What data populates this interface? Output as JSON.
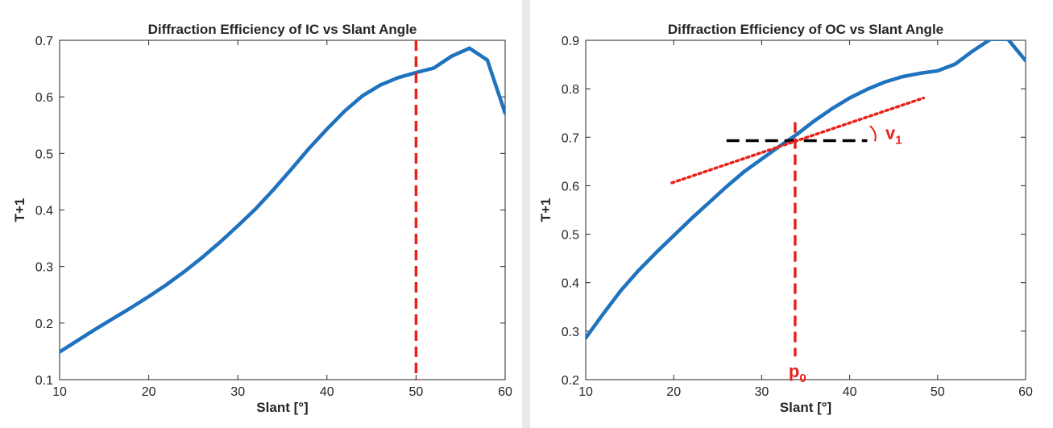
{
  "chart_data": [
    {
      "type": "line",
      "title": "Diffraction Efficiency of IC vs Slant Angle",
      "xlabel": "Slant [°]",
      "ylabel": "T+1",
      "xlim": [
        10,
        60
      ],
      "ylim": [
        0.1,
        0.7
      ],
      "xticks": [
        "10",
        "20",
        "30",
        "40",
        "50",
        "60"
      ],
      "yticks": [
        "0.1",
        "0.2",
        "0.3",
        "0.4",
        "0.5",
        "0.6",
        "0.7"
      ],
      "grid": false,
      "line_color": "#1f72bd",
      "series": [
        {
          "x": [
            10,
            12,
            14,
            16,
            18,
            20,
            22,
            24,
            26,
            28,
            30,
            32,
            34,
            36,
            38,
            40,
            42,
            44,
            46,
            48,
            50,
            52,
            54,
            56,
            58,
            60
          ],
          "values": [
            0.149,
            0.169,
            0.189,
            0.208,
            0.227,
            0.247,
            0.268,
            0.291,
            0.316,
            0.343,
            0.372,
            0.402,
            0.436,
            0.472,
            0.509,
            0.543,
            0.575,
            0.602,
            0.621,
            0.634,
            0.643,
            0.651,
            0.672,
            0.686,
            0.665,
            0.571
          ]
        }
      ],
      "annotations": [
        {
          "type": "vline",
          "x": 50,
          "color": "#e8211b",
          "style": "dashed"
        }
      ]
    },
    {
      "type": "line",
      "title": "Diffraction Efficiency of OC vs Slant Angle",
      "xlabel": "Slant [°]",
      "ylabel": "T+1",
      "xlim": [
        10,
        60
      ],
      "ylim": [
        0.2,
        0.9
      ],
      "xticks": [
        "10",
        "20",
        "30",
        "40",
        "50",
        "60"
      ],
      "yticks": [
        "0.2",
        "0.3",
        "0.4",
        "0.5",
        "0.6",
        "0.7",
        "0.8",
        "0.9"
      ],
      "grid": false,
      "line_color": "#1f72bd",
      "series": [
        {
          "x": [
            10,
            12,
            14,
            16,
            18,
            20,
            22,
            24,
            26,
            28,
            30,
            32,
            34,
            36,
            38,
            40,
            42,
            44,
            46,
            48,
            50,
            52,
            54,
            56,
            58,
            60
          ],
          "values": [
            0.286,
            0.336,
            0.384,
            0.425,
            0.462,
            0.497,
            0.532,
            0.565,
            0.598,
            0.629,
            0.655,
            0.681,
            0.706,
            0.734,
            0.759,
            0.781,
            0.799,
            0.814,
            0.825,
            0.832,
            0.837,
            0.851,
            0.878,
            0.902,
            0.902,
            0.858
          ]
        }
      ],
      "annotations": [
        {
          "type": "hline_segment",
          "y": 0.693,
          "x_from": 26,
          "x_to": 42,
          "color": "#000000",
          "style": "dashed"
        },
        {
          "type": "vline_segment",
          "x": 33.8,
          "y_from": 0.248,
          "y_to": 0.731,
          "color": "#e8211b",
          "style": "dashed"
        },
        {
          "type": "tangent",
          "x_from": 19.8,
          "y_from": 0.606,
          "x_to": 48.4,
          "y_to": 0.781,
          "color": "#e8211b",
          "style": "dotted"
        },
        {
          "type": "angle_arc",
          "at_x": 42.6,
          "at_y": 0.69,
          "color": "#e8211b"
        },
        {
          "type": "label",
          "text": "v",
          "subscript": "1",
          "color": "#e8211b"
        },
        {
          "type": "label",
          "text": "p",
          "subscript": "0",
          "color": "#e8211b"
        }
      ]
    }
  ]
}
